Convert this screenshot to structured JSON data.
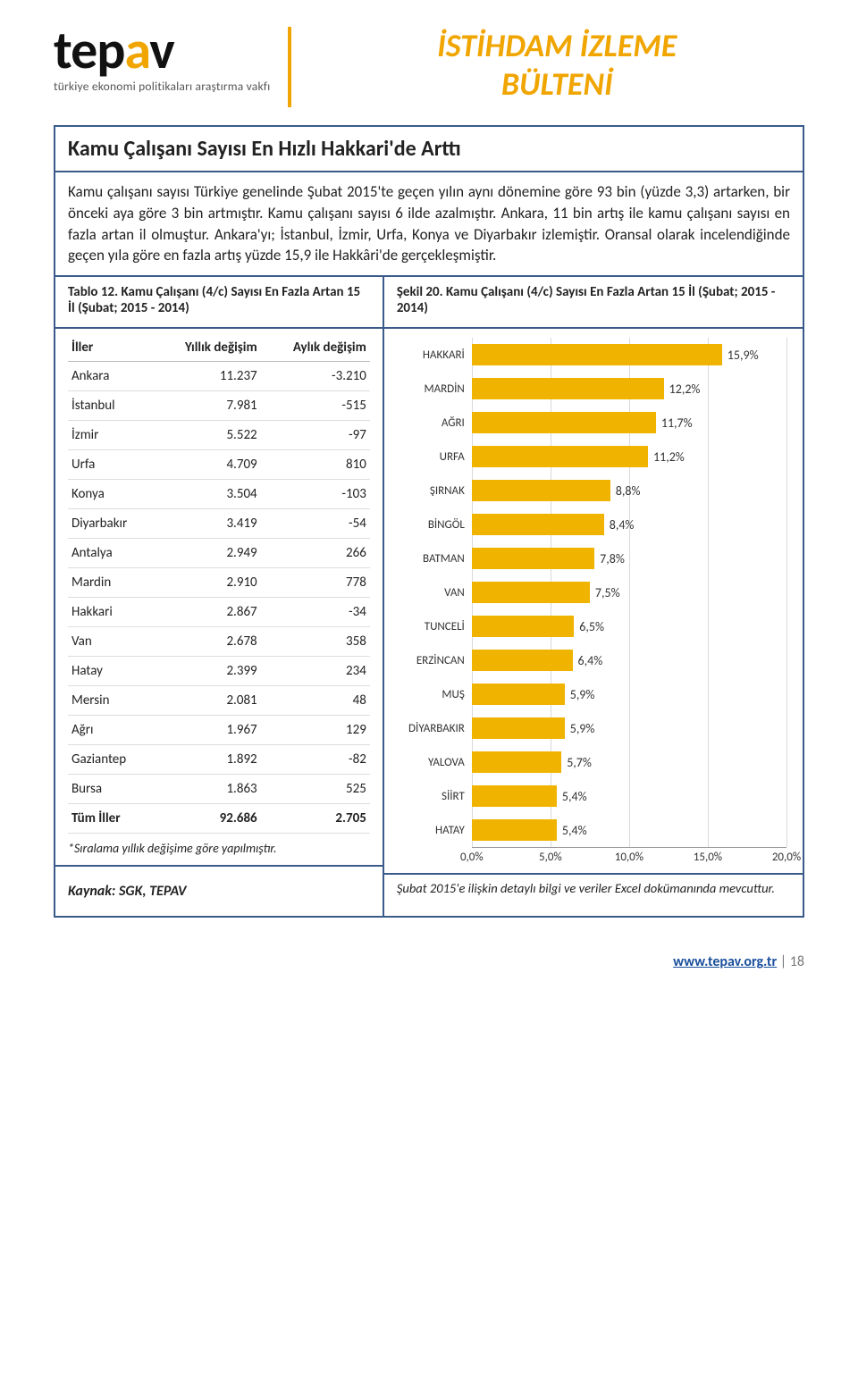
{
  "header": {
    "logo_main": "tepav",
    "logo_sub": "türkiye ekonomi politikaları araştırma vakfı",
    "bulletin_line1": "İSTİHDAM İZLEME",
    "bulletin_line2": "BÜLTENİ"
  },
  "section": {
    "title": "Kamu Çalışanı Sayısı En Hızlı Hakkari'de Arttı",
    "paragraph": "Kamu çalışanı sayısı Türkiye genelinde Şubat 2015'te geçen yılın aynı dönemine göre 93 bin (yüzde 3,3) artarken, bir önceki aya göre 3 bin artmıştır. Kamu çalışanı sayısı 6 ilde azalmıştır. Ankara, 11 bin artış ile kamu çalışanı sayısı en fazla artan il olmuştur. Ankara'yı; İstanbul, İzmir, Urfa, Konya ve Diyarbakır izlemiştir. Oransal olarak incelendiğinde geçen yıla göre en fazla artış yüzde 15,9 ile Hakkâri'de gerçekleşmiştir."
  },
  "table_caption": "Tablo 12. Kamu Çalışanı (4/c) Sayısı En Fazla Artan 15 İl (Şubat; 2015 - 2014)",
  "chart_caption": "Şekil 20. Kamu Çalışanı (4/c) Sayısı En Fazla Artan 15 İl (Şubat; 2015 - 2014)",
  "table": {
    "headers": [
      "İller",
      "Yıllık değişim",
      "Aylık değişim"
    ],
    "rows": [
      [
        "Ankara",
        "11.237",
        "-3.210"
      ],
      [
        "İstanbul",
        "7.981",
        "-515"
      ],
      [
        "İzmir",
        "5.522",
        "-97"
      ],
      [
        "Urfa",
        "4.709",
        "810"
      ],
      [
        "Konya",
        "3.504",
        "-103"
      ],
      [
        "Diyarbakır",
        "3.419",
        "-54"
      ],
      [
        "Antalya",
        "2.949",
        "266"
      ],
      [
        "Mardin",
        "2.910",
        "778"
      ],
      [
        "Hakkari",
        "2.867",
        "-34"
      ],
      [
        "Van",
        "2.678",
        "358"
      ],
      [
        "Hatay",
        "2.399",
        "234"
      ],
      [
        "Mersin",
        "2.081",
        "48"
      ],
      [
        "Ağrı",
        "1.967",
        "129"
      ],
      [
        "Gaziantep",
        "1.892",
        "-82"
      ],
      [
        "Bursa",
        "1.863",
        "525"
      ]
    ],
    "total": [
      "Tüm İller",
      "92.686",
      "2.705"
    ],
    "footnote": "*Sıralama yıllık değişime göre yapılmıştır.",
    "source": "Kaynak: SGK, TEPAV"
  },
  "chart": {
    "type": "bar-horizontal",
    "xlim": [
      0,
      20
    ],
    "xticks": [
      "0,0%",
      "5,0%",
      "10,0%",
      "15,0%",
      "20,0%"
    ],
    "bar_color": "#f0b400",
    "grid_color": "#d9d9d9",
    "label_fontsize": 13,
    "value_fontsize": 14,
    "categories": [
      "HAKKARİ",
      "MARDİN",
      "AĞRI",
      "URFA",
      "ŞIRNAK",
      "BİNGÖL",
      "BATMAN",
      "VAN",
      "TUNCELİ",
      "ERZİNCAN",
      "MUŞ",
      "DİYARBAKIR",
      "YALOVA",
      "SİİRT",
      "HATAY"
    ],
    "values": [
      15.9,
      12.2,
      11.7,
      11.2,
      8.8,
      8.4,
      7.8,
      7.5,
      6.5,
      6.4,
      5.9,
      5.9,
      5.7,
      5.4,
      5.4
    ],
    "value_labels": [
      "15,9%",
      "12,2%",
      "11,7%",
      "11,2%",
      "8,8%",
      "8,4%",
      "7,8%",
      "7,5%",
      "6,5%",
      "6,4%",
      "5,9%",
      "5,9%",
      "5,7%",
      "5,4%",
      "5,4%"
    ],
    "note": "Şubat 2015'e ilişkin detaylı bilgi ve veriler Excel dokümanında mevcuttur."
  },
  "footer": {
    "link": "www.tepav.org.tr",
    "separator": " | ",
    "page": "18"
  }
}
